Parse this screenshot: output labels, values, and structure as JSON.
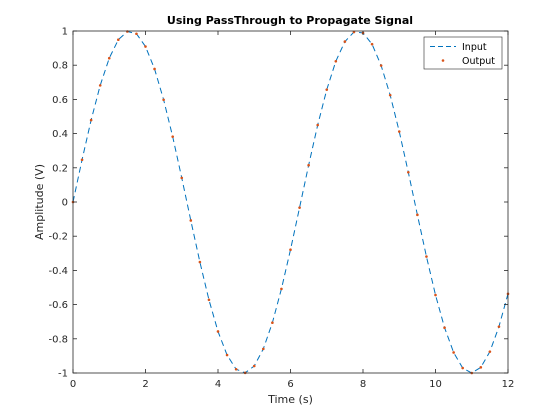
{
  "chart_data": {
    "type": "line",
    "title": "Using PassThrough to Propagate Signal",
    "xlabel": "Time (s)",
    "ylabel": "Amplitude (V)",
    "xlim": [
      0,
      12
    ],
    "ylim": [
      -1,
      1
    ],
    "x_ticks": [
      0,
      2,
      4,
      6,
      8,
      10,
      12
    ],
    "x_tick_labels": [
      "0",
      "2",
      "4",
      "6",
      "8",
      "10",
      "12"
    ],
    "y_ticks": [
      -1,
      -0.8,
      -0.6,
      -0.4,
      -0.2,
      0,
      0.2,
      0.4,
      0.6,
      0.8,
      1
    ],
    "y_tick_labels": [
      "-1",
      "-0.8",
      "-0.6",
      "-0.4",
      "-0.2",
      "0",
      "0.2",
      "0.4",
      "0.6",
      "0.8",
      "1"
    ],
    "grid": false,
    "legend_position": "top-right",
    "series": [
      {
        "name": "Input",
        "style": "dashed-line",
        "color": "#0072BD",
        "x": [
          0,
          0.25,
          0.5,
          0.75,
          1.0,
          1.25,
          1.5,
          1.75,
          2.0,
          2.25,
          2.5,
          2.75,
          3.0,
          3.25,
          3.5,
          3.75,
          4.0,
          4.25,
          4.5,
          4.75,
          5.0,
          5.25,
          5.5,
          5.75,
          6.0,
          6.25,
          6.5,
          6.75,
          7.0,
          7.25,
          7.5,
          7.75,
          8.0,
          8.25,
          8.5,
          8.75,
          9.0,
          9.25,
          9.5,
          9.75,
          10.0,
          10.25,
          10.5,
          10.75,
          11.0,
          11.25,
          11.5,
          11.75,
          12.0
        ],
        "y": [
          0,
          0.247,
          0.479,
          0.682,
          0.841,
          0.949,
          0.997,
          0.984,
          0.909,
          0.778,
          0.598,
          0.382,
          0.141,
          -0.108,
          -0.351,
          -0.572,
          -0.757,
          -0.895,
          -0.978,
          -0.999,
          -0.959,
          -0.859,
          -0.706,
          -0.508,
          -0.279,
          -0.033,
          0.215,
          0.45,
          0.657,
          0.823,
          0.938,
          0.994,
          0.989,
          0.923,
          0.798,
          0.625,
          0.412,
          0.174,
          -0.075,
          -0.319,
          -0.544,
          -0.735,
          -0.88,
          -0.971,
          -1.0,
          -0.967,
          -0.875,
          -0.729,
          -0.537
        ]
      },
      {
        "name": "Output",
        "style": "markers",
        "color": "#D95319",
        "x": [
          0,
          0.25,
          0.5,
          0.75,
          1.0,
          1.25,
          1.5,
          1.75,
          2.0,
          2.25,
          2.5,
          2.75,
          3.0,
          3.25,
          3.5,
          3.75,
          4.0,
          4.25,
          4.5,
          4.75,
          5.0,
          5.25,
          5.5,
          5.75,
          6.0,
          6.25,
          6.5,
          6.75,
          7.0,
          7.25,
          7.5,
          7.75,
          8.0,
          8.25,
          8.5,
          8.75,
          9.0,
          9.25,
          9.5,
          9.75,
          10.0,
          10.25,
          10.5,
          10.75,
          11.0,
          11.25,
          11.5,
          11.75,
          12.0
        ],
        "y": [
          0,
          0.247,
          0.479,
          0.682,
          0.841,
          0.949,
          0.997,
          0.984,
          0.909,
          0.778,
          0.598,
          0.382,
          0.141,
          -0.108,
          -0.351,
          -0.572,
          -0.757,
          -0.895,
          -0.978,
          -0.999,
          -0.959,
          -0.859,
          -0.706,
          -0.508,
          -0.279,
          -0.033,
          0.215,
          0.45,
          0.657,
          0.823,
          0.938,
          0.994,
          0.989,
          0.923,
          0.798,
          0.625,
          0.412,
          0.174,
          -0.075,
          -0.319,
          -0.544,
          -0.735,
          -0.88,
          -0.971,
          -1.0,
          -0.967,
          -0.875,
          -0.729,
          -0.537
        ]
      }
    ]
  }
}
